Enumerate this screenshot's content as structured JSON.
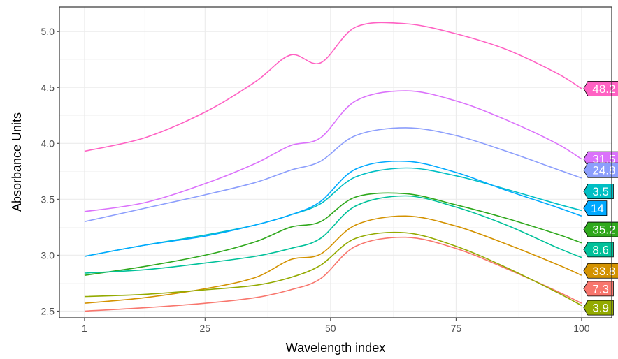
{
  "chart_data": {
    "type": "line",
    "title": "",
    "xlabel": "Wavelength index",
    "ylabel": "Absorbance Units",
    "xlim": [
      -4,
      106
    ],
    "ylim": [
      2.44,
      5.22
    ],
    "x_ticks": [
      1,
      25,
      50,
      75,
      100
    ],
    "x_tick_labels": [
      "1",
      "25",
      "50",
      "75",
      "100"
    ],
    "y_ticks": [
      2.5,
      3.0,
      3.5,
      4.0,
      4.5,
      5.0
    ],
    "y_tick_labels": [
      "2.5",
      "3.0",
      "3.5",
      "4.0",
      "4.5",
      "5.0"
    ],
    "grid": true,
    "legend": "none",
    "x": [
      1,
      13,
      25,
      35,
      42,
      48,
      55,
      65,
      75,
      85,
      95,
      100
    ],
    "series": [
      {
        "name": "48.2",
        "color": "#ff61c3",
        "values": [
          3.93,
          4.05,
          4.28,
          4.55,
          4.79,
          4.72,
          5.04,
          5.07,
          4.98,
          4.84,
          4.63,
          4.49
        ]
      },
      {
        "name": "31.5",
        "color": "#db72fb",
        "values": [
          3.39,
          3.47,
          3.64,
          3.82,
          3.98,
          4.05,
          4.38,
          4.47,
          4.38,
          4.21,
          4.0,
          3.86
        ]
      },
      {
        "name": "24.8",
        "color": "#93aa00",
        "swatch_fix": "#8c9efc",
        "values": [
          3.3,
          3.42,
          3.54,
          3.65,
          3.76,
          3.84,
          4.07,
          4.14,
          4.07,
          3.93,
          3.77,
          3.69
        ]
      },
      {
        "name": "3.5",
        "color": "#00b9e3",
        "swatch_fix": "#00bfc4",
        "values": [
          2.99,
          3.09,
          3.18,
          3.27,
          3.36,
          3.46,
          3.7,
          3.78,
          3.71,
          3.59,
          3.46,
          3.4
        ]
      },
      {
        "name": "14",
        "color": "#00a9ff",
        "values": [
          2.99,
          3.09,
          3.17,
          3.27,
          3.36,
          3.48,
          3.77,
          3.84,
          3.74,
          3.58,
          3.43,
          3.35
        ]
      },
      {
        "name": "35.2",
        "color": "#2fa81c",
        "values": [
          2.82,
          2.9,
          3.0,
          3.12,
          3.25,
          3.3,
          3.52,
          3.55,
          3.45,
          3.33,
          3.19,
          3.11
        ]
      },
      {
        "name": "8.6",
        "color": "#00c19a",
        "values": [
          2.84,
          2.87,
          2.93,
          2.99,
          3.06,
          3.15,
          3.44,
          3.53,
          3.43,
          3.27,
          3.07,
          2.98
        ]
      },
      {
        "name": "33.8",
        "color": "#d39200",
        "values": [
          2.57,
          2.62,
          2.7,
          2.8,
          2.96,
          3.01,
          3.27,
          3.35,
          3.26,
          3.1,
          2.92,
          2.82
        ]
      },
      {
        "name": "7.3",
        "color": "#f8766d",
        "values": [
          2.5,
          2.53,
          2.57,
          2.62,
          2.69,
          2.79,
          3.08,
          3.16,
          3.06,
          2.88,
          2.68,
          2.57
        ]
      },
      {
        "name": "3.9",
        "color": "#93aa00",
        "values": [
          2.63,
          2.65,
          2.69,
          2.73,
          2.8,
          2.91,
          3.15,
          3.2,
          3.08,
          2.89,
          2.67,
          2.55
        ]
      }
    ],
    "end_labels": [
      {
        "text": "48.2",
        "color": "#ff61c3",
        "y": 4.49
      },
      {
        "text": "31.5",
        "color": "#db72fb",
        "y": 3.86
      },
      {
        "text": "24.8",
        "color": "#8c9efc",
        "y": 3.76
      },
      {
        "text": "3.5",
        "color": "#00bfc4",
        "y": 3.57
      },
      {
        "text": "14",
        "color": "#00a9ff",
        "y": 3.42
      },
      {
        "text": "35.2",
        "color": "#2fa81c",
        "y": 3.23
      },
      {
        "text": "8.6",
        "color": "#00c19a",
        "y": 3.05
      },
      {
        "text": "33.8",
        "color": "#d39200",
        "y": 2.86
      },
      {
        "text": "7.3",
        "color": "#f8766d",
        "y": 2.7
      },
      {
        "text": "3.9",
        "color": "#93aa00",
        "y": 2.53
      }
    ]
  }
}
